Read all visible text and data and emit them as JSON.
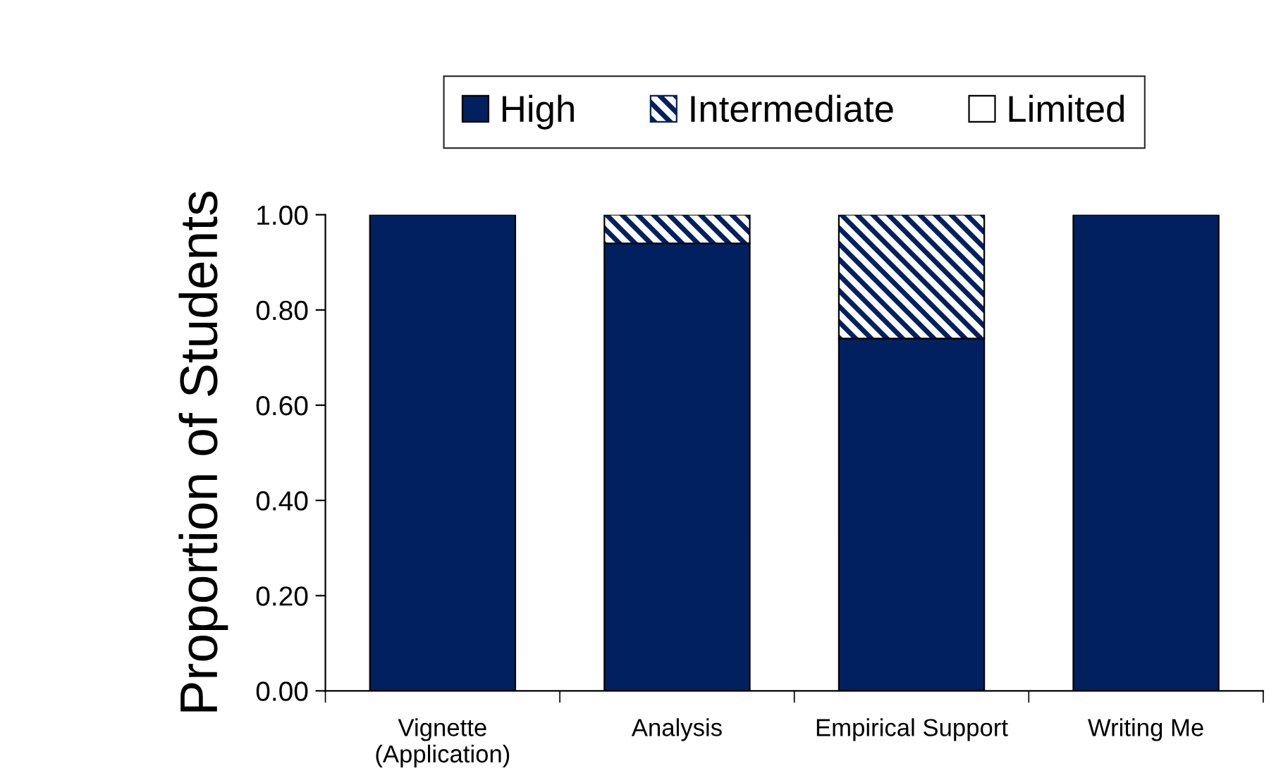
{
  "chart_data": {
    "type": "bar",
    "stacked": true,
    "ylabel": "Proportion of Students",
    "categories": [
      "Vignette\n(Application)",
      "Analysis",
      "Empirical Support",
      "Writing Me"
    ],
    "series": [
      {
        "name": "High",
        "color": "#002060",
        "values": [
          1.0,
          0.94,
          0.74,
          1.0
        ]
      },
      {
        "name": "Intermediate",
        "color": "#002060",
        "values": [
          0,
          0.06,
          0.26,
          0
        ]
      },
      {
        "name": "Limited",
        "color": "#ffffff",
        "values": [
          0,
          0,
          0,
          0
        ]
      }
    ],
    "ylim": [
      0,
      1.0
    ],
    "yticks": [
      {
        "value": 0,
        "label": "0.00"
      },
      {
        "value": 0.2,
        "label": "0.20"
      },
      {
        "value": 0.4,
        "label": "0.40"
      },
      {
        "value": 0.6,
        "label": "0.60"
      },
      {
        "value": 0.8,
        "label": "0.80"
      },
      {
        "value": 1.0,
        "label": "1.00"
      }
    ],
    "grid": false,
    "legend": "top"
  }
}
